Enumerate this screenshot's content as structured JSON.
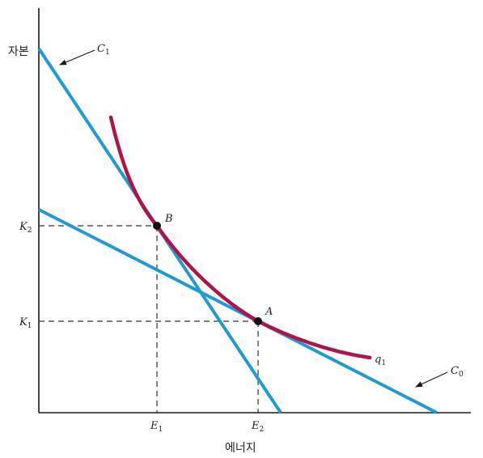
{
  "axes": {
    "y_label": "자본",
    "x_label": "에너지"
  },
  "ticks": {
    "x": [
      {
        "main": "E",
        "sub": "1"
      },
      {
        "main": "E",
        "sub": "2"
      }
    ],
    "y": [
      {
        "main": "K",
        "sub": "2"
      },
      {
        "main": "K",
        "sub": "1"
      }
    ]
  },
  "curves": {
    "isoquant": {
      "main": "q",
      "sub": "1",
      "color": "#B0124A"
    },
    "isocost_steep": {
      "main": "C",
      "sub": "1",
      "color": "#1E9AD6"
    },
    "isocost_flat": {
      "main": "C",
      "sub": "0",
      "color": "#1E9AD6"
    }
  },
  "points": {
    "tangent_steep": "B",
    "tangent_flat": "A"
  },
  "colors": {
    "axis": "#1a1a1a",
    "guide": "#333333",
    "point": "#111111"
  }
}
